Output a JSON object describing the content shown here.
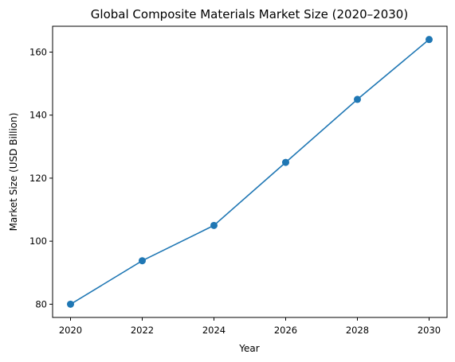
{
  "chart_data": {
    "type": "line",
    "title": "Global Composite Materials Market Size (2020–2030)",
    "xlabel": "Year",
    "ylabel": "Market Size (USD Billion)",
    "x": [
      2020,
      2022,
      2024,
      2026,
      2028,
      2030
    ],
    "series": [
      {
        "values": [
          80,
          93.8,
          105,
          125,
          145,
          164
        ]
      }
    ],
    "xticks": [
      2020,
      2022,
      2024,
      2026,
      2028,
      2030
    ],
    "yticks": [
      80,
      100,
      120,
      140,
      160
    ],
    "xlim": [
      2019.5,
      2030.5
    ],
    "ylim": [
      75.8,
      168.2
    ],
    "grid": false,
    "legend": "none",
    "line_color": "#1f77b4"
  }
}
